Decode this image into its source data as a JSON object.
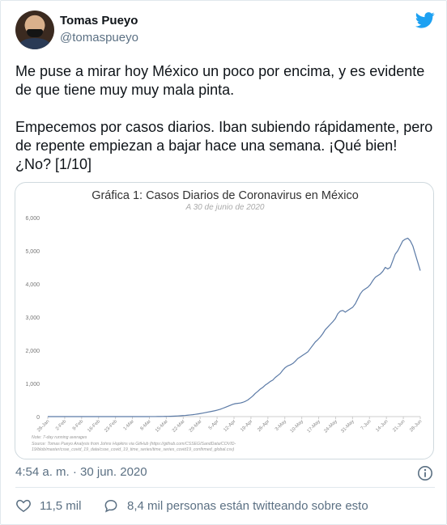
{
  "author": {
    "name": "Tomas Pueyo",
    "handle": "@tomaspueyo"
  },
  "tweet": {
    "paragraphs": [
      "Me puse a mirar hoy México un poco por encima, y es evidente de que tiene muy muy mala pinta.",
      "Empecemos por casos diarios. Iban subiendo rápidamente, pero de repente empiezan a bajar hace una semana. ¡Qué bien! ¿No? [1/10]"
    ],
    "timestamp": "4:54 a. m. · 30 jun. 2020",
    "likes": "11,5 mil",
    "talking": "8,4 mil personas están twitteando sobre esto"
  },
  "icons": {
    "brand": "twitter-bird-icon",
    "info": "info-icon",
    "like": "heart-icon",
    "reply": "speech-bubble-icon"
  },
  "colors": {
    "brand": "#1da1f2",
    "line": "#5b7aa6",
    "secondary_text": "#5b7083"
  },
  "chart_data": {
    "type": "line",
    "title": "Gráfica 1: Casos Diarios de Coronavirus en México",
    "subtitle": "A 30 de junio de 2020",
    "xlabel": "",
    "ylabel": "",
    "ylim": [
      0,
      6000
    ],
    "y_ticks": [
      0,
      1000,
      2000,
      3000,
      4000,
      5000,
      6000
    ],
    "y_tick_labels": [
      "0",
      "1,000",
      "2,000",
      "3,000",
      "4,000",
      "5,000",
      "6,000"
    ],
    "x_tick_labels": [
      "26-Jan",
      "2-Feb",
      "9-Feb",
      "16-Feb",
      "23-Feb",
      "1-Mar",
      "8-Mar",
      "15-Mar",
      "22-Mar",
      "29-Mar",
      "5-Apr",
      "12-Apr",
      "19-Apr",
      "26-Apr",
      "3-May",
      "10-May",
      "17-May",
      "24-May",
      "31-May",
      "7-Jun",
      "14-Jun",
      "21-Jun",
      "28-Jun"
    ],
    "grid": false,
    "legend": "none",
    "series": [
      {
        "values": [
          0,
          0,
          0,
          0,
          0,
          0,
          0,
          0,
          0,
          0,
          0,
          0,
          0,
          0,
          0,
          0,
          0,
          0,
          0,
          0,
          0,
          0,
          0,
          0,
          0,
          0,
          0,
          0,
          0,
          0,
          0,
          0,
          0,
          0,
          0,
          0,
          0,
          0,
          0,
          0,
          0,
          1,
          1,
          2,
          3,
          4,
          5,
          6,
          8,
          10,
          13,
          16,
          20,
          25,
          30,
          35,
          42,
          50,
          58,
          68,
          80,
          92,
          105,
          120,
          135,
          150,
          165,
          180,
          200,
          220,
          250,
          280,
          310,
          340,
          370,
          390,
          400,
          410,
          430,
          460,
          500,
          560,
          620,
          700,
          760,
          830,
          880,
          950,
          1000,
          1060,
          1100,
          1180,
          1240,
          1300,
          1400,
          1480,
          1530,
          1560,
          1600,
          1670,
          1750,
          1800,
          1850,
          1900,
          1950,
          2050,
          2150,
          2250,
          2320,
          2400,
          2500,
          2620,
          2700,
          2780,
          2860,
          2950,
          3100,
          3180,
          3200,
          3150,
          3200,
          3250,
          3300,
          3400,
          3550,
          3700,
          3800,
          3850,
          3900,
          3980,
          4100,
          4200,
          4250,
          4300,
          4380,
          4500,
          4450,
          4500,
          4700,
          4900,
          5000,
          5150,
          5300,
          5350,
          5380,
          5300,
          5150,
          4900,
          4650,
          4400
        ]
      }
    ],
    "annotations": [
      "Note: 7-day running averages",
      "Source: Tomas Pueyo Analysis from Johns Hopkins via GitHub (https://github.com/CSSEGISandData/COVID-",
      "19/blob/master/csse_covid_19_data/csse_covid_19_time_series/time_series_covid19_confirmed_global.csv)"
    ]
  }
}
